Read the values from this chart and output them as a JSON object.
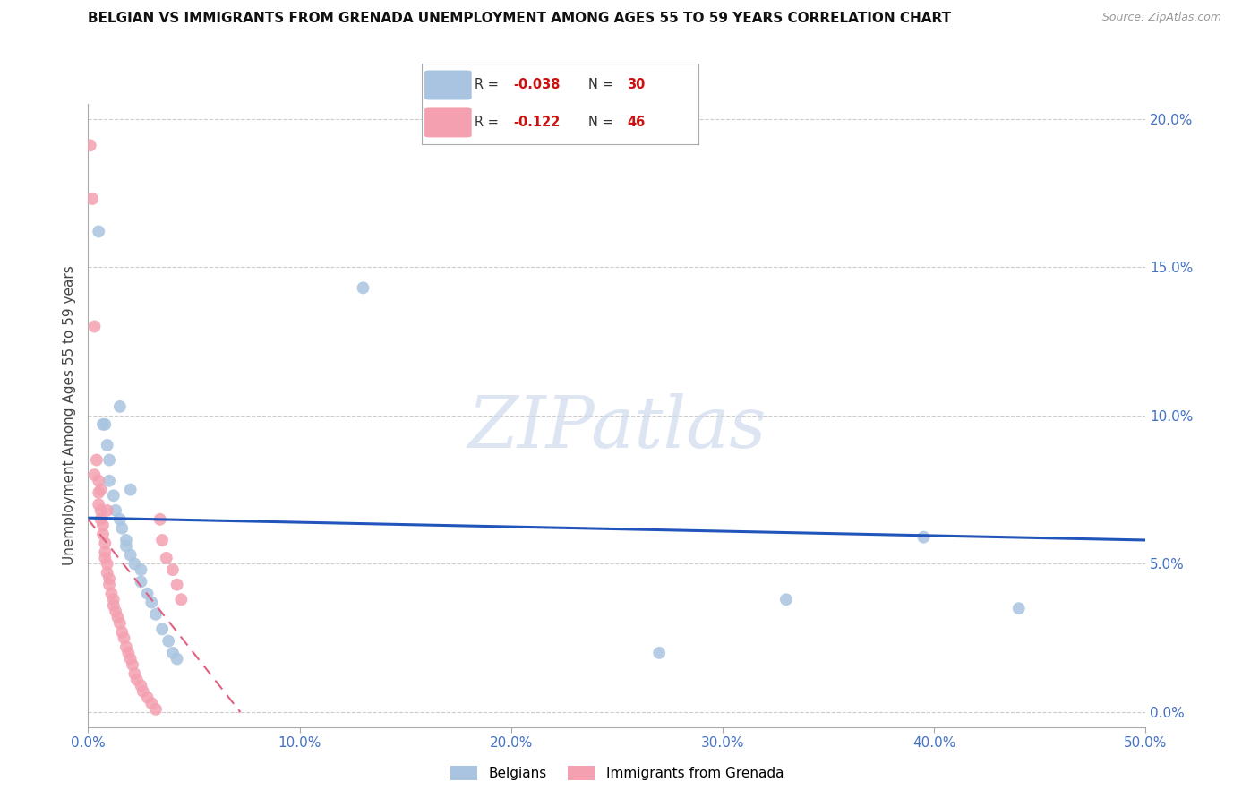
{
  "title": "BELGIAN VS IMMIGRANTS FROM GRENADA UNEMPLOYMENT AMONG AGES 55 TO 59 YEARS CORRELATION CHART",
  "source": "Source: ZipAtlas.com",
  "ylabel": "Unemployment Among Ages 55 to 59 years",
  "xlim": [
    0,
    0.5
  ],
  "ylim": [
    -0.005,
    0.205
  ],
  "xticks": [
    0.0,
    0.1,
    0.2,
    0.3,
    0.4,
    0.5
  ],
  "xtick_labels": [
    "0.0%",
    "10.0%",
    "20.0%",
    "30.0%",
    "40.0%",
    "50.0%"
  ],
  "yticks": [
    0.0,
    0.05,
    0.1,
    0.15,
    0.2
  ],
  "ytick_labels_right": [
    "0.0%",
    "5.0%",
    "10.0%",
    "15.0%",
    "20.0%"
  ],
  "watermark": "ZIPatlas",
  "blue_R": "-0.038",
  "blue_N": "30",
  "pink_R": "-0.122",
  "pink_N": "46",
  "blue_scatter_x": [
    0.005,
    0.007,
    0.008,
    0.009,
    0.01,
    0.01,
    0.012,
    0.013,
    0.015,
    0.016,
    0.018,
    0.018,
    0.02,
    0.022,
    0.025,
    0.025,
    0.028,
    0.03,
    0.032,
    0.035,
    0.038,
    0.04,
    0.042,
    0.13,
    0.27,
    0.33,
    0.395,
    0.44,
    0.015,
    0.02
  ],
  "blue_scatter_y": [
    0.162,
    0.097,
    0.097,
    0.09,
    0.085,
    0.078,
    0.073,
    0.068,
    0.065,
    0.062,
    0.058,
    0.056,
    0.053,
    0.05,
    0.048,
    0.044,
    0.04,
    0.037,
    0.033,
    0.028,
    0.024,
    0.02,
    0.018,
    0.143,
    0.02,
    0.038,
    0.059,
    0.035,
    0.103,
    0.075
  ],
  "pink_scatter_x": [
    0.001,
    0.002,
    0.003,
    0.004,
    0.005,
    0.005,
    0.005,
    0.006,
    0.006,
    0.007,
    0.007,
    0.008,
    0.008,
    0.008,
    0.009,
    0.009,
    0.01,
    0.01,
    0.011,
    0.012,
    0.012,
    0.013,
    0.014,
    0.015,
    0.016,
    0.017,
    0.018,
    0.019,
    0.02,
    0.021,
    0.022,
    0.023,
    0.025,
    0.026,
    0.028,
    0.03,
    0.032,
    0.034,
    0.035,
    0.037,
    0.04,
    0.042,
    0.044,
    0.003,
    0.006,
    0.009
  ],
  "pink_scatter_y": [
    0.191,
    0.173,
    0.13,
    0.085,
    0.078,
    0.074,
    0.07,
    0.068,
    0.065,
    0.063,
    0.06,
    0.057,
    0.054,
    0.052,
    0.05,
    0.047,
    0.045,
    0.043,
    0.04,
    0.038,
    0.036,
    0.034,
    0.032,
    0.03,
    0.027,
    0.025,
    0.022,
    0.02,
    0.018,
    0.016,
    0.013,
    0.011,
    0.009,
    0.007,
    0.005,
    0.003,
    0.001,
    0.065,
    0.058,
    0.052,
    0.048,
    0.043,
    0.038,
    0.08,
    0.075,
    0.068
  ],
  "blue_line_x": [
    0.0,
    0.5
  ],
  "blue_line_y": [
    0.0655,
    0.058
  ],
  "pink_line_x": [
    0.0,
    0.072
  ],
  "pink_line_y": [
    0.065,
    0.0
  ],
  "axis_color": "#4472c4",
  "blue_dot_color": "#a8c4e0",
  "pink_dot_color": "#f4a0b0",
  "blue_line_color": "#2255bb",
  "pink_line_color": "#e06080",
  "grid_color": "#cccccc",
  "title_fontsize": 11,
  "tick_fontsize": 11,
  "label_fontsize": 11,
  "source_fontsize": 9,
  "legend_R_color": "#cc1111",
  "legend_N_color": "#cc1111"
}
